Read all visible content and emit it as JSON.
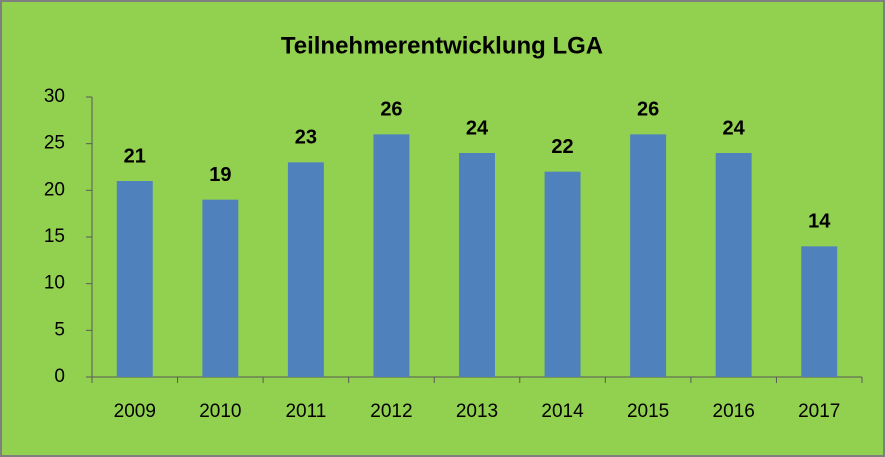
{
  "chart_data": {
    "type": "bar",
    "title": "Teilnehmerentwicklung LGA",
    "categories": [
      "2009",
      "2010",
      "2011",
      "2012",
      "2013",
      "2014",
      "2015",
      "2016",
      "2017"
    ],
    "values": [
      21,
      19,
      23,
      26,
      24,
      22,
      26,
      24,
      14
    ],
    "color": "#4f81bd",
    "ylim": [
      0,
      30
    ],
    "yticks": [
      0,
      5,
      10,
      15,
      20,
      25,
      30
    ],
    "grid": false,
    "data_labels": true
  }
}
